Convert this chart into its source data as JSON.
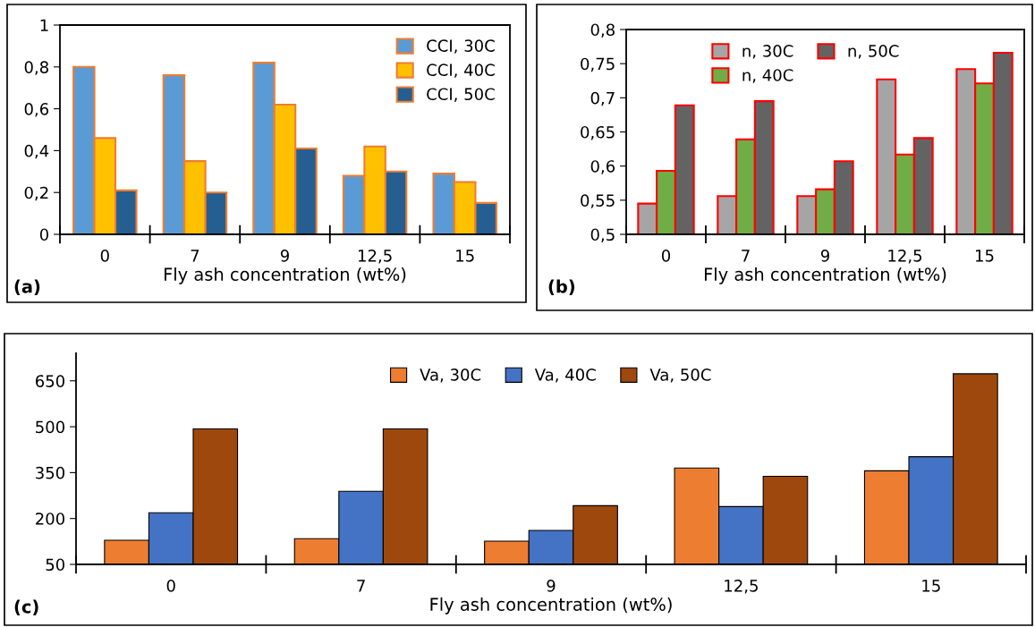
{
  "chart_data": [
    {
      "type": "bar",
      "categories": [
        "0",
        "7",
        "9",
        "12,5",
        "15"
      ],
      "xlabel": "Fly ash concentration (wt%)",
      "annotations": [
        "(a)"
      ],
      "ylim": [
        0,
        1
      ],
      "yticks": [
        0,
        {
          "value": 0.2,
          "label": "0,2"
        },
        {
          "value": 0.4,
          "label": "0,4"
        },
        {
          "value": 0.6,
          "label": "0,6"
        },
        {
          "value": 0.8,
          "label": "0,8"
        },
        1
      ],
      "grid": false,
      "legend": "right",
      "series": [
        {
          "name": "CCI, 30C",
          "color": "#5b9bd5",
          "values": [
            0.8,
            0.76,
            0.82,
            0.28,
            0.29
          ]
        },
        {
          "name": "CCI, 40C",
          "color": "#ffc000",
          "values": [
            0.46,
            0.35,
            0.62,
            0.42,
            0.25
          ]
        },
        {
          "name": "CCI, 50C",
          "color": "#255e91",
          "values": [
            0.21,
            0.2,
            0.41,
            0.3,
            0.15
          ]
        }
      ]
    },
    {
      "type": "bar",
      "categories": [
        "0",
        "7",
        "9",
        "12,5",
        "15"
      ],
      "xlabel": "Fly ash concentration (wt%)",
      "annotations": [
        "(b)"
      ],
      "ylim": [
        0.5,
        0.8
      ],
      "yticks": [
        {
          "value": 0.5,
          "label": "0,5"
        },
        {
          "value": 0.55,
          "label": "0,55"
        },
        {
          "value": 0.6,
          "label": "0,6"
        },
        {
          "value": 0.65,
          "label": "0,65"
        },
        {
          "value": 0.7,
          "label": "0,7"
        },
        {
          "value": 0.75,
          "label": "0,75"
        },
        {
          "value": 0.8,
          "label": "0,8"
        }
      ],
      "grid": false,
      "legend": "top left",
      "series": [
        {
          "name": "n, 30C",
          "color": "#a5a5a5",
          "values": [
            0.545,
            0.556,
            0.556,
            0.727,
            0.742
          ]
        },
        {
          "name": "n, 40C",
          "color": "#70ad47",
          "values": [
            0.593,
            0.639,
            0.566,
            0.617,
            0.721
          ]
        },
        {
          "name": "n, 50C",
          "color": "#636363",
          "values": [
            0.689,
            0.695,
            0.607,
            0.641,
            0.766
          ]
        }
      ]
    },
    {
      "type": "bar",
      "categories": [
        "0",
        "7",
        "9",
        "12,5",
        "15"
      ],
      "xlabel": "Fly ash concentration (wt%)",
      "annotations": [
        "(c)"
      ],
      "ylim": [
        50,
        740
      ],
      "yticks": [
        50,
        200,
        350,
        500,
        650
      ],
      "grid": false,
      "legend": "top",
      "series": [
        {
          "name": "Va, 30C",
          "color": "#ed7d31",
          "values": [
            129,
            134,
            126,
            365,
            356
          ]
        },
        {
          "name": "Va, 40C",
          "color": "#4472c4",
          "values": [
            219,
            289,
            161,
            239,
            402
          ]
        },
        {
          "name": "Va, 50C",
          "color": "#9e480e",
          "values": [
            493,
            493,
            242,
            338,
            673
          ]
        }
      ]
    }
  ]
}
